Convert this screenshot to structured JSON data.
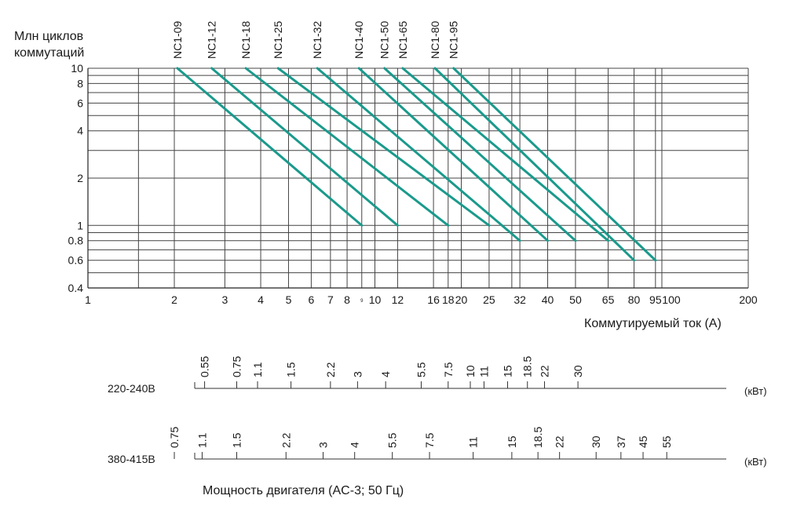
{
  "chart_data": {
    "type": "line",
    "ylabel_lines": [
      "Млн циклов",
      "коммутаций"
    ],
    "xlabel": "Коммутируемый ток (А)",
    "x_scale": "log",
    "y_scale": "log",
    "xlim": [
      1,
      200
    ],
    "ylim": [
      0.4,
      10
    ],
    "grid": true,
    "color": "#1a9a8c",
    "x_tick_labels": [
      {
        "v": 1,
        "t": "1"
      },
      {
        "v": 2,
        "t": "2"
      },
      {
        "v": 3,
        "t": "3"
      },
      {
        "v": 4,
        "t": "4"
      },
      {
        "v": 5,
        "t": "5"
      },
      {
        "v": 6,
        "t": "6"
      },
      {
        "v": 7,
        "t": "7"
      },
      {
        "v": 8,
        "t": "8"
      },
      {
        "v": 9,
        "t": "9"
      },
      {
        "v": 10,
        "t": "10"
      },
      {
        "v": 12,
        "t": "12"
      },
      {
        "v": 16,
        "t": "16"
      },
      {
        "v": 18,
        "t": "18"
      },
      {
        "v": 20,
        "t": "20"
      },
      {
        "v": 25,
        "t": "25"
      },
      {
        "v": 32,
        "t": "32"
      },
      {
        "v": 40,
        "t": "40"
      },
      {
        "v": 50,
        "t": "50"
      },
      {
        "v": 65,
        "t": "65"
      },
      {
        "v": 80,
        "t": "80"
      },
      {
        "v": 95,
        "t": "95"
      },
      {
        "v": 100,
        "t": "100"
      },
      {
        "v": 200,
        "t": "200"
      }
    ],
    "x_grid_lines": [
      1.5,
      2,
      3,
      4,
      5,
      6,
      7,
      8,
      9,
      10,
      12,
      16,
      18,
      20,
      25,
      30,
      32,
      40,
      50,
      65,
      80,
      95,
      100
    ],
    "y_tick_labels": [
      {
        "v": 10,
        "t": "10"
      },
      {
        "v": 8,
        "t": "8"
      },
      {
        "v": 6,
        "t": "6"
      },
      {
        "v": 4,
        "t": "4"
      },
      {
        "v": 2,
        "t": "2"
      },
      {
        "v": 1,
        "t": "1"
      },
      {
        "v": 0.8,
        "t": "0.8"
      },
      {
        "v": 0.6,
        "t": "0.6"
      },
      {
        "v": 0.4,
        "t": "0.4"
      }
    ],
    "y_grid_lines": [
      10,
      9,
      8,
      7,
      6,
      5,
      4,
      3,
      2,
      1,
      0.9,
      0.8,
      0.7,
      0.6,
      0.5,
      0.4
    ],
    "series": [
      {
        "name": "NC1-09",
        "x": [
          2.05,
          9.0
        ],
        "y": [
          10,
          1.0
        ]
      },
      {
        "name": "NC1-12",
        "x": [
          2.7,
          12.0
        ],
        "y": [
          10,
          1.0
        ]
      },
      {
        "name": "NC1-18",
        "x": [
          3.55,
          18.0
        ],
        "y": [
          10,
          1.0
        ]
      },
      {
        "name": "NC1-25",
        "x": [
          4.6,
          25.0
        ],
        "y": [
          10,
          1.0
        ]
      },
      {
        "name": "NC1-32",
        "x": [
          6.3,
          32.0
        ],
        "y": [
          10,
          0.8
        ]
      },
      {
        "name": "NC1-40",
        "x": [
          8.8,
          40.0
        ],
        "y": [
          10,
          0.8
        ]
      },
      {
        "name": "NC1-50",
        "x": [
          10.8,
          50.0
        ],
        "y": [
          10,
          0.8
        ]
      },
      {
        "name": "NC1-65",
        "x": [
          12.5,
          65.0
        ],
        "y": [
          10,
          0.8
        ]
      },
      {
        "name": "NC1-80",
        "x": [
          16.2,
          80.0
        ],
        "y": [
          10,
          0.6
        ]
      },
      {
        "name": "NC1-95",
        "x": [
          18.8,
          95.0
        ],
        "y": [
          10,
          0.6
        ]
      }
    ]
  },
  "motor_scales": {
    "caption": "Мощность двигателя (AC-3; 50 Гц)",
    "rows": [
      {
        "label": "220-240В",
        "unit": "(кВт)",
        "marks": [
          {
            "kw": "0.55",
            "amps": 2.55
          },
          {
            "kw": "0.75",
            "amps": 3.3
          },
          {
            "kw": "1.1",
            "amps": 3.9
          },
          {
            "kw": "1.5",
            "amps": 5.1
          },
          {
            "kw": "2.2",
            "amps": 7.0
          },
          {
            "kw": "3",
            "amps": 8.7
          },
          {
            "kw": "4",
            "amps": 10.9
          },
          {
            "kw": "5.5",
            "amps": 14.5
          },
          {
            "kw": "7.5",
            "amps": 18.0
          },
          {
            "kw": "10",
            "amps": 21.5
          },
          {
            "kw": "11",
            "amps": 24.0
          },
          {
            "kw": "15",
            "amps": 29.0
          },
          {
            "kw": "18.5",
            "amps": 34.0
          },
          {
            "kw": "22",
            "amps": 39.0
          },
          {
            "kw": "30",
            "amps": 51.0
          }
        ]
      },
      {
        "label": "380-415В",
        "unit": "(кВт)",
        "marks": [
          {
            "kw": "0.75",
            "amps": 2.0
          },
          {
            "kw": "1.1",
            "amps": 2.5
          },
          {
            "kw": "1.5",
            "amps": 3.3
          },
          {
            "kw": "2.2",
            "amps": 4.9
          },
          {
            "kw": "3",
            "amps": 6.6
          },
          {
            "kw": "4",
            "amps": 8.5
          },
          {
            "kw": "5.5",
            "amps": 11.5
          },
          {
            "kw": "7.5",
            "amps": 15.5
          },
          {
            "kw": "11",
            "amps": 22.0
          },
          {
            "kw": "15",
            "amps": 30.0
          },
          {
            "kw": "18.5",
            "amps": 37.0
          },
          {
            "kw": "22",
            "amps": 44.0
          },
          {
            "kw": "30",
            "amps": 59.0
          },
          {
            "kw": "37",
            "amps": 72.0
          },
          {
            "kw": "45",
            "amps": 86.0
          },
          {
            "kw": "55",
            "amps": 104.0
          }
        ]
      }
    ]
  }
}
